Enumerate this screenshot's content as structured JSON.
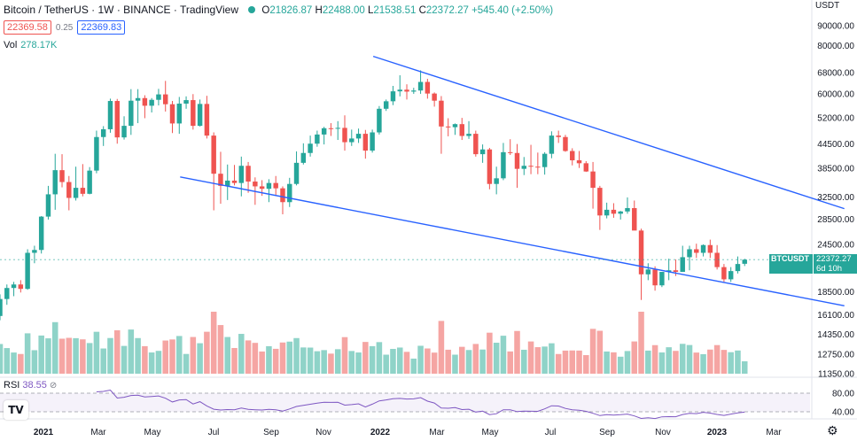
{
  "header": {
    "title": "Bitcoin / TetherUS · 1W · BINANCE · TradingView",
    "open_label": "O",
    "open": "21826.87",
    "high_label": "H",
    "high": "22488.00",
    "low_label": "L",
    "low": "21538.51",
    "close_label": "C",
    "close": "22372.27",
    "change": "+545.40 (+2.50%)",
    "sell_price": "22369.58",
    "spread": "0.25",
    "buy_price": "22369.83"
  },
  "volume_legend": {
    "label": "Vol",
    "value": "278.17K"
  },
  "rsi_legend": {
    "label": "RSI",
    "value": "38.55",
    "extra": "⊘"
  },
  "price_axis": {
    "unit": "USDT",
    "ticks": [
      "90000.00",
      "80000.00",
      "68000.00",
      "60000.00",
      "52000.00",
      "44500.00",
      "38500.00",
      "32500.00",
      "28500.00",
      "24500.00",
      "18500.00",
      "16100.00",
      "14350.00",
      "12750.00",
      "11350.00"
    ]
  },
  "rsi_axis": {
    "ticks": [
      "80.00",
      "40.00"
    ]
  },
  "time_axis": {
    "labels": [
      "2021",
      "Mar",
      "May",
      "Jul",
      "Sep",
      "Nov",
      "2022",
      "Mar",
      "May",
      "Jul",
      "Sep",
      "Nov",
      "2023",
      "Mar"
    ]
  },
  "symbol_tag": {
    "symbol": "BTCUSDT",
    "price": "22372.27",
    "countdown": "6d 10h"
  },
  "colors": {
    "up": "#26a69a",
    "down": "#ef5350",
    "trendline": "#2962ff",
    "rsi": "#7e57c2",
    "up_volume": "#8fd3c8",
    "down_volume": "#f5a5a3"
  },
  "icons": {
    "logo": "tradingview-logo-icon",
    "settings": "gear-icon"
  },
  "chart_data": {
    "type": "candlestick",
    "title": "Bitcoin / TetherUS",
    "interval": "1W",
    "exchange": "BINANCE",
    "y_scale": "log",
    "ylim": [
      11350,
      95000
    ],
    "candles": [
      [
        16000,
        18200,
        15600,
        17700
      ],
      [
        17700,
        19300,
        17100,
        18900
      ],
      [
        18900,
        19600,
        18000,
        19300
      ],
      [
        19300,
        19800,
        18400,
        18800
      ],
      [
        18800,
        23800,
        18700,
        23300
      ],
      [
        23300,
        24300,
        21900,
        23700
      ],
      [
        23700,
        29000,
        23200,
        28900
      ],
      [
        28900,
        34700,
        28400,
        33000
      ],
      [
        33000,
        42000,
        30100,
        38100
      ],
      [
        38100,
        41900,
        34400,
        35500
      ],
      [
        35500,
        36800,
        30000,
        32300
      ],
      [
        32300,
        38900,
        31800,
        34300
      ],
      [
        34300,
        39500,
        32600,
        33100
      ],
      [
        33100,
        38800,
        33000,
        38000
      ],
      [
        38000,
        48200,
        37400,
        46400
      ],
      [
        46400,
        49500,
        44000,
        48600
      ],
      [
        48600,
        58300,
        47600,
        57500
      ],
      [
        57500,
        58200,
        44600,
        46300
      ],
      [
        46300,
        52500,
        45700,
        49600
      ],
      [
        49600,
        61700,
        47000,
        57600
      ],
      [
        57600,
        61700,
        50400,
        58500
      ],
      [
        58500,
        59500,
        51900,
        55900
      ],
      [
        55900,
        58500,
        53700,
        57900
      ],
      [
        57900,
        61800,
        56000,
        59800
      ],
      [
        59800,
        64800,
        54000,
        56400
      ],
      [
        56400,
        57500,
        47500,
        50300
      ],
      [
        50300,
        58900,
        47300,
        56600
      ],
      [
        56600,
        59100,
        54900,
        57800
      ],
      [
        57800,
        59900,
        48500,
        49600
      ],
      [
        49600,
        58000,
        49400,
        56500
      ],
      [
        56500,
        59300,
        46000,
        46800
      ],
      [
        46800,
        47700,
        30000,
        37300
      ],
      [
        37300,
        42500,
        31200,
        34700
      ],
      [
        34700,
        39400,
        31900,
        35800
      ],
      [
        35800,
        39300,
        34800,
        35300
      ],
      [
        35300,
        41300,
        32600,
        39100
      ],
      [
        39100,
        40000,
        33300,
        35600
      ],
      [
        35600,
        36500,
        31000,
        34600
      ],
      [
        34600,
        35900,
        32700,
        34100
      ],
      [
        34100,
        36100,
        31500,
        35300
      ],
      [
        35300,
        36800,
        32800,
        34200
      ],
      [
        34200,
        34600,
        29300,
        31500
      ],
      [
        31500,
        36400,
        30600,
        35100
      ],
      [
        35100,
        42600,
        34800,
        39800
      ],
      [
        39800,
        44700,
        39400,
        42200
      ],
      [
        42200,
        46800,
        41300,
        44600
      ],
      [
        44600,
        48200,
        43800,
        47100
      ],
      [
        47100,
        49300,
        44400,
        48900
      ],
      [
        48900,
        50400,
        46700,
        48800
      ],
      [
        48800,
        51000,
        45600,
        49000
      ],
      [
        49000,
        52800,
        42800,
        45000
      ],
      [
        45000,
        48500,
        44000,
        46000
      ],
      [
        46000,
        48800,
        44800,
        47300
      ],
      [
        47300,
        48400,
        40800,
        42800
      ],
      [
        42800,
        48500,
        42300,
        47700
      ],
      [
        47700,
        55800,
        47100,
        54900
      ],
      [
        54900,
        58000,
        54200,
        57400
      ],
      [
        57400,
        62900,
        56100,
        60900
      ],
      [
        60900,
        67000,
        59100,
        61500
      ],
      [
        61500,
        63500,
        58000,
        60800
      ],
      [
        60800,
        62200,
        60000,
        61200
      ],
      [
        61200,
        69000,
        60000,
        64400
      ],
      [
        64400,
        65600,
        58300,
        60100
      ],
      [
        60100,
        60500,
        55600,
        57600
      ],
      [
        57600,
        59200,
        42000,
        49400
      ],
      [
        49400,
        51900,
        46600,
        49200
      ],
      [
        49200,
        50300,
        47000,
        50100
      ],
      [
        50100,
        52000,
        45600,
        46700
      ],
      [
        46700,
        51000,
        45900,
        47300
      ],
      [
        47300,
        48200,
        41300,
        41900
      ],
      [
        41900,
        44400,
        39800,
        43100
      ],
      [
        43100,
        43500,
        34000,
        35100
      ],
      [
        35100,
        38900,
        33000,
        36300
      ],
      [
        36300,
        44800,
        35900,
        42400
      ],
      [
        42400,
        45800,
        41700,
        42200
      ],
      [
        42200,
        44500,
        34300,
        38400
      ],
      [
        38400,
        41200,
        37000,
        39100
      ],
      [
        39100,
        44300,
        37200,
        38900
      ],
      [
        38900,
        42300,
        37200,
        38800
      ],
      [
        38800,
        42400,
        37100,
        42000
      ],
      [
        42000,
        48000,
        40900,
        46800
      ],
      [
        46800,
        48200,
        44800,
        46400
      ],
      [
        46400,
        47000,
        42500,
        42700
      ],
      [
        42700,
        43400,
        39200,
        40400
      ],
      [
        40400,
        42700,
        38600,
        39700
      ],
      [
        39700,
        40200,
        37700,
        37800
      ],
      [
        37800,
        40000,
        30300,
        34300
      ],
      [
        34300,
        34700,
        26700,
        29100
      ],
      [
        29100,
        31400,
        28600,
        30100
      ],
      [
        30100,
        31300,
        28700,
        29400
      ],
      [
        29400,
        29900,
        28400,
        29800
      ],
      [
        29800,
        32400,
        29400,
        30400
      ],
      [
        30400,
        31800,
        26700,
        26600
      ],
      [
        26600,
        26900,
        17600,
        20500
      ],
      [
        20500,
        21900,
        19800,
        21100
      ],
      [
        21100,
        21500,
        18600,
        19200
      ],
      [
        19200,
        20700,
        19000,
        20800
      ],
      [
        20800,
        22500,
        19800,
        21000
      ],
      [
        21000,
        22400,
        20300,
        20800
      ],
      [
        20800,
        24300,
        20800,
        22700
      ],
      [
        22700,
        24300,
        21000,
        23800
      ],
      [
        23800,
        24600,
        22600,
        23300
      ],
      [
        23300,
        24500,
        22800,
        24400
      ],
      [
        24400,
        25200,
        22600,
        23300
      ],
      [
        23300,
        24400,
        21100,
        21400
      ],
      [
        21400,
        21800,
        19600,
        19900
      ],
      [
        19900,
        21400,
        19600,
        20900
      ],
      [
        20900,
        22800,
        20600,
        21800
      ],
      [
        21826.87,
        22488,
        21538.51,
        22372.27
      ]
    ],
    "volume_series": "Vol",
    "indicator": {
      "name": "RSI",
      "value": 38.55,
      "bands": [
        80,
        40
      ]
    },
    "trendlines": [
      {
        "name": "upper-trendline",
        "from": {
          "index": 54,
          "price": 75000
        },
        "to": {
          "index": 124,
          "price": 30300
        }
      },
      {
        "name": "lower-trendline",
        "from": {
          "index": 26,
          "price": 36600
        },
        "to": {
          "index": 124,
          "price": 17000
        }
      }
    ],
    "last_price": 22372.27
  }
}
